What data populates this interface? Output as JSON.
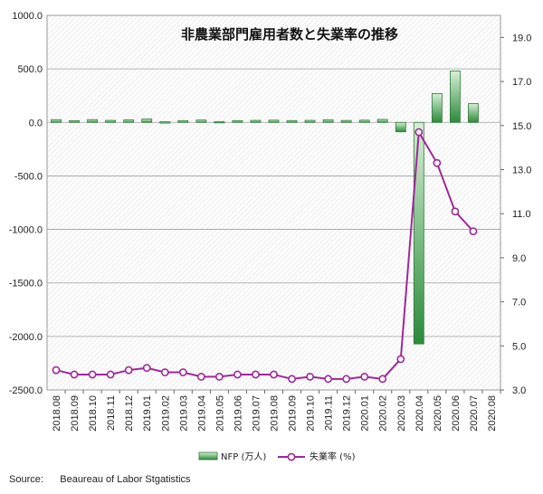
{
  "chart_data": {
    "type": "bar+line",
    "title": "非農業部門雇用者数と失業率の推移",
    "categories": [
      "2018.08",
      "2018.09",
      "2018.10",
      "2018.11",
      "2018.12",
      "2019.01",
      "2019.02",
      "2019.03",
      "2019.04",
      "2019.05",
      "2019.06",
      "2019.07",
      "2019.08",
      "2019.09",
      "2019.10",
      "2019.11",
      "2019.12",
      "2020.01",
      "2020.02",
      "2020.03",
      "2020.04",
      "2020.05",
      "2020.06",
      "2020.07",
      "2020.08"
    ],
    "series": [
      {
        "name": "NFP (万人)",
        "type": "bar",
        "axis": "left",
        "color": "#3f9a4e",
        "values": [
          26,
          16,
          26,
          19,
          24,
          31,
          6,
          17,
          22,
          8,
          17,
          19,
          21,
          17,
          19,
          25,
          18,
          21,
          28,
          -88,
          -2070,
          270,
          480,
          176,
          null
        ]
      },
      {
        "name": "失業率 (%)",
        "type": "line",
        "axis": "right",
        "color": "#a0279a",
        "values": [
          3.9,
          3.7,
          3.7,
          3.7,
          3.9,
          4.0,
          3.8,
          3.8,
          3.6,
          3.6,
          3.7,
          3.7,
          3.7,
          3.5,
          3.6,
          3.5,
          3.5,
          3.6,
          3.5,
          4.4,
          14.7,
          13.3,
          11.1,
          10.2,
          null
        ]
      }
    ],
    "y_left": {
      "min": -2500,
      "max": 1000,
      "ticks": [
        "1000.0",
        "500.0",
        "0.0",
        "-500.0",
        "-1000.0",
        "-1500.0",
        "-2000.0",
        "-2500.0"
      ]
    },
    "y_right": {
      "min": 3.0,
      "max": 20.0,
      "ticks": [
        "19.0",
        "17.0",
        "15.0",
        "13.0",
        "11.0",
        "9.0",
        "7.0",
        "5.0",
        "3.0"
      ]
    },
    "grid": true,
    "legend_position": "bottom-center",
    "legend": [
      "NFP (万人)",
      "失業率 (%)"
    ],
    "source": "Source:      Beaureau of Labor Stgatistics"
  }
}
